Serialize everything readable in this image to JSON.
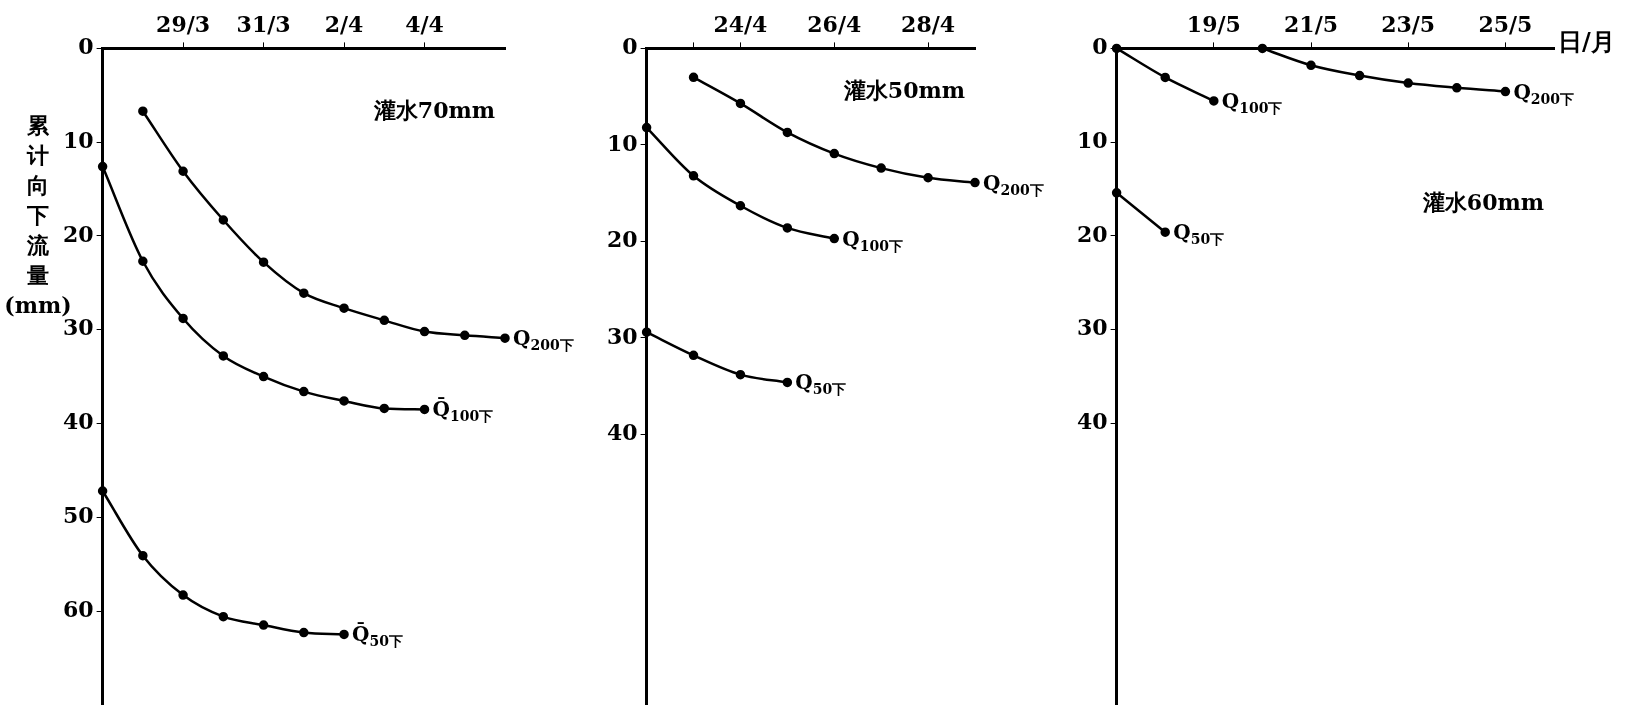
{
  "chart_data": [
    {
      "type": "line",
      "ylabel": "累计向下流量(mm)",
      "xlim": [
        "--03-27",
        "--04-06"
      ],
      "ylim": [
        70,
        0
      ],
      "xticks": [
        {
          "value": "--03-29",
          "label": "29/3"
        },
        {
          "value": "--03-31",
          "label": "31/3"
        },
        {
          "value": "--04-02",
          "label": "2/4"
        },
        {
          "value": "--04-04",
          "label": "4/4"
        }
      ],
      "yticks": [
        0,
        10,
        20,
        30,
        40,
        50,
        60
      ],
      "grid": false,
      "legend": false,
      "marker": "circle",
      "annotations": [
        "灌水70mm"
      ],
      "series": [
        {
          "name": "Q$_{200下}$",
          "color": "#000000",
          "x": [
            "--03-28",
            "--03-29",
            "--03-30",
            "--03-31",
            "--04-01",
            "--04-02",
            "--04-03",
            "--04-04",
            "--04-05",
            "--04-06"
          ],
          "values": [
            6.7,
            13.1,
            18.3,
            22.8,
            26.1,
            27.7,
            29.0,
            30.2,
            30.6,
            30.9
          ]
        },
        {
          "name": "Q̄$_{100下}$",
          "color": "#000000",
          "x": [
            "--03-27",
            "--03-28",
            "--03-29",
            "--03-30",
            "--03-31",
            "--04-01",
            "--04-02",
            "--04-03",
            "--04-04"
          ],
          "values": [
            12.6,
            22.7,
            28.8,
            32.8,
            35.0,
            36.6,
            37.6,
            38.4,
            38.5
          ]
        },
        {
          "name": "Q̄$_{50下}$",
          "color": "#000000",
          "x": [
            "--03-27",
            "--03-28",
            "--03-29",
            "--03-30",
            "--03-31",
            "--04-01",
            "--04-02"
          ],
          "values": [
            47.2,
            54.1,
            58.3,
            60.6,
            61.5,
            62.3,
            62.5
          ]
        }
      ]
    },
    {
      "type": "line",
      "xlim": [
        "--04-22",
        "--04-29"
      ],
      "ylim": [
        68,
        0
      ],
      "xticks": [
        {
          "value": "--04-23",
          "label": null
        },
        {
          "value": "--04-24",
          "label": "24/4"
        },
        {
          "value": "--04-26",
          "label": "26/4"
        },
        {
          "value": "--04-28",
          "label": "28/4"
        }
      ],
      "yticks": [
        0,
        10,
        20,
        30,
        40
      ],
      "grid": false,
      "legend": false,
      "marker": "circle",
      "annotations": [
        "灌水50mm"
      ],
      "series": [
        {
          "name": "Q$_{200下}$",
          "color": "#000000",
          "x": [
            "--04-23",
            "--04-24",
            "--04-25",
            "--04-26",
            "--04-27",
            "--04-28",
            "--04-29"
          ],
          "values": [
            3.0,
            5.7,
            8.7,
            10.9,
            12.4,
            13.4,
            13.9
          ]
        },
        {
          "name": "Q$_{100下}$",
          "color": "#000000",
          "x": [
            "--04-22",
            "--04-23",
            "--04-24",
            "--04-25",
            "--04-26"
          ],
          "values": [
            8.2,
            13.2,
            16.3,
            18.6,
            19.7
          ]
        },
        {
          "name": "Q$_{50下}$",
          "color": "#000000",
          "x": [
            "--04-22",
            "--04-23",
            "--04-24",
            "--04-25"
          ],
          "values": [
            29.4,
            31.8,
            33.8,
            34.6
          ]
        }
      ]
    },
    {
      "type": "line",
      "xlabel": "日/月",
      "xlim": [
        "--05-17",
        "--05-26"
      ],
      "ylim": [
        70,
        0
      ],
      "xticks": [
        {
          "value": "--05-19",
          "label": "19/5"
        },
        {
          "value": "--05-21",
          "label": "21/5"
        },
        {
          "value": "--05-23",
          "label": "23/5"
        },
        {
          "value": "--05-25",
          "label": "25/5"
        }
      ],
      "yticks": [
        0,
        10,
        20,
        30,
        40
      ],
      "grid": false,
      "legend": false,
      "marker": "circle",
      "annotations": [
        "灌水60mm"
      ],
      "series": [
        {
          "name": "Q$_{100下}$",
          "color": "#000000",
          "x": [
            "--05-17",
            "--05-18",
            "--05-19"
          ],
          "values": [
            0,
            3.1,
            5.6
          ]
        },
        {
          "name": "Q$_{200下}$",
          "color": "#000000",
          "x": [
            "--05-20",
            "--05-21",
            "--05-22",
            "--05-23",
            "--05-24",
            "--05-25"
          ],
          "values": [
            0,
            1.8,
            2.9,
            3.7,
            4.2,
            4.6
          ]
        },
        {
          "name": "Q$_{50下}$",
          "color": "#000000",
          "x": [
            "--05-17",
            "--05-18"
          ],
          "values": [
            15.4,
            19.6
          ]
        }
      ]
    }
  ]
}
